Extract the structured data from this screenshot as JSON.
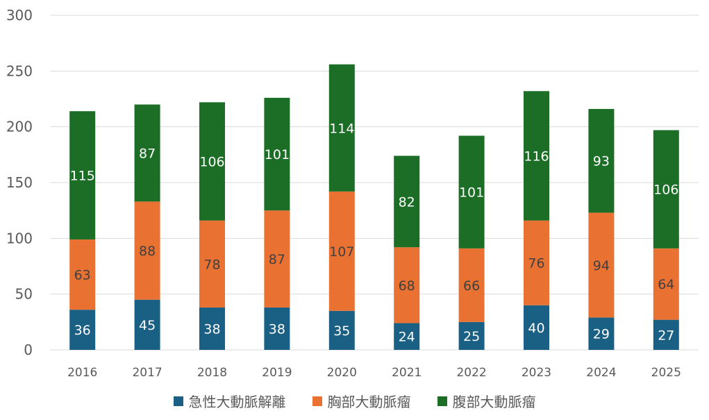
{
  "chart_data": {
    "type": "bar",
    "stacked": true,
    "title": "",
    "xlabel": "",
    "ylabel": "",
    "ylim": [
      0,
      300
    ],
    "yticks": [
      0,
      50,
      100,
      150,
      200,
      250,
      300
    ],
    "grid": true,
    "legend_position": "bottom",
    "categories": [
      "2016",
      "2017",
      "2018",
      "2019",
      "2020",
      "2021",
      "2022",
      "2023",
      "2024",
      "2025"
    ],
    "series": [
      {
        "name": "急性大動脈解離",
        "color": "#1a6084",
        "label_color": "#ffffff",
        "values": [
          36,
          45,
          38,
          38,
          35,
          24,
          25,
          40,
          29,
          27
        ]
      },
      {
        "name": "胸部大動脈瘤",
        "color": "#e97132",
        "label_color": "#404040",
        "values": [
          63,
          88,
          78,
          87,
          107,
          68,
          66,
          76,
          94,
          64
        ]
      },
      {
        "name": "腹部大動脈瘤",
        "color": "#1c6d26",
        "label_color": "#ffffff",
        "values": [
          115,
          87,
          106,
          101,
          114,
          82,
          101,
          116,
          93,
          106
        ]
      }
    ]
  }
}
